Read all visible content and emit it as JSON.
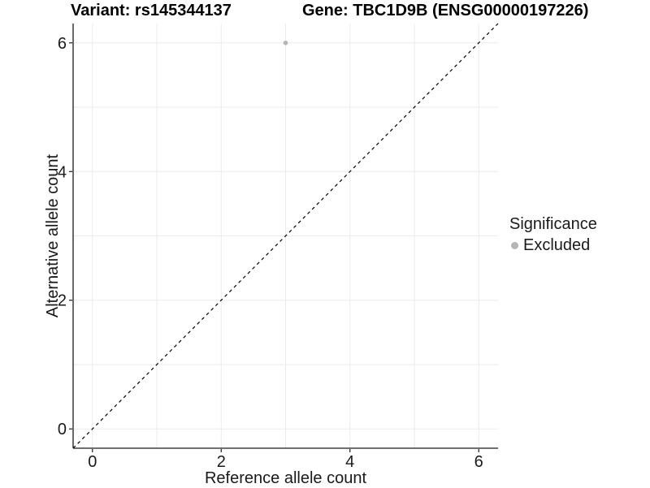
{
  "figure": {
    "title_left": "Variant: rs145344137",
    "title_right": "Gene: TBC1D9B (ENSG00000197226)"
  },
  "chart_data": {
    "type": "scatter",
    "xlabel": "Reference allele count",
    "ylabel": "Alternative allele count",
    "xlim": [
      -0.3,
      6.3
    ],
    "ylim": [
      -0.3,
      6.3
    ],
    "xticks": [
      0,
      2,
      4,
      6
    ],
    "yticks": [
      0,
      2,
      4,
      6
    ],
    "gridlines_at": [
      0,
      1,
      2,
      3,
      4,
      5,
      6
    ],
    "grid": "on",
    "reference_line": {
      "type": "identity (y = x)",
      "style": "dashed",
      "x": [
        -0.3,
        6.3
      ],
      "y": [
        -0.3,
        6.3
      ],
      "color": "#000000"
    },
    "series": [
      {
        "name": "Excluded",
        "color": "#b5b5b5",
        "points": [
          {
            "x": 3,
            "y": 6
          }
        ]
      }
    ],
    "legend": {
      "title": "Significance",
      "position": "right",
      "items": [
        {
          "label": "Excluded",
          "color": "#b5b5b5",
          "marker": "circle"
        }
      ]
    }
  },
  "colors": {
    "background": "#ffffff",
    "gridline": "#ebebeb",
    "axis_line": "#1a1a1a",
    "tick_text": "#1a1a1a",
    "title_text": "#000000",
    "point": "#b5b5b5"
  }
}
